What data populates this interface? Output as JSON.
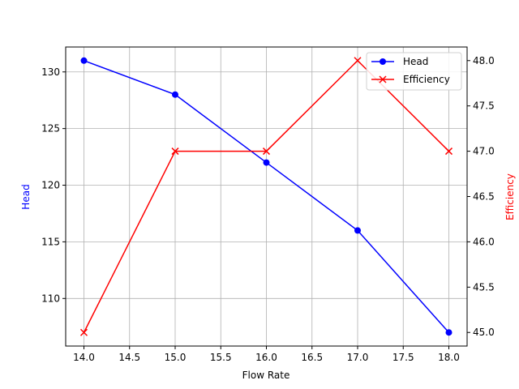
{
  "chart_data": {
    "type": "line",
    "title": "",
    "xlabel": "Flow Rate",
    "ylabel": "Head",
    "ylabel_right": "Efficiency",
    "x": [
      14.0,
      15.0,
      16.0,
      17.0,
      18.0
    ],
    "series": [
      {
        "name": "Head",
        "axis": "left",
        "color": "#0000ff",
        "marker": "o",
        "values": [
          131,
          128,
          122,
          116,
          107
        ]
      },
      {
        "name": "Efficiency",
        "axis": "right",
        "color": "#ff0000",
        "marker": "x",
        "values": [
          45.0,
          47.0,
          47.0,
          48.0,
          47.0
        ]
      }
    ],
    "xticks": [
      "14.0",
      "14.5",
      "15.0",
      "15.5",
      "16.0",
      "16.5",
      "17.0",
      "17.5",
      "18.0"
    ],
    "yticks_left": [
      "110",
      "115",
      "120",
      "125",
      "130"
    ],
    "yticks_right": [
      "45.0",
      "45.5",
      "46.0",
      "46.5",
      "47.0",
      "47.5",
      "48.0"
    ],
    "xlim": [
      13.8,
      18.2
    ],
    "ylim_left": [
      105.8,
      132.2
    ],
    "ylim_right": [
      44.85,
      48.15
    ],
    "grid": true,
    "legend_position": "upper right"
  },
  "legend": {
    "items": [
      {
        "label": "Head"
      },
      {
        "label": "Efficiency"
      }
    ]
  }
}
